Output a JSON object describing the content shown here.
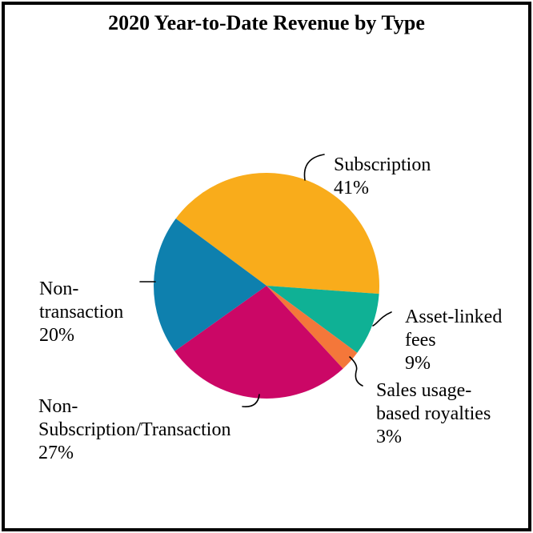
{
  "chart_data": {
    "type": "pie",
    "title": "2020 Year-to-Date Revenue by Type",
    "start_angle_deg": -53.5,
    "legend_position": "none",
    "labels_style": "outside-callouts",
    "slices": [
      {
        "name": "Subscription",
        "value_pct": 41,
        "color": "#F9AC1B",
        "callout_text": "Subscription\n41%"
      },
      {
        "name": "Asset-linked fees",
        "value_pct": 9,
        "color": "#0FB195",
        "callout_text": "Asset-linked\nfees\n9%"
      },
      {
        "name": "Sales usage-based royalties",
        "value_pct": 3,
        "color": "#F4773A",
        "callout_text": "Sales usage-\nbased royalties\n3%"
      },
      {
        "name": "Non-Subscription/Transaction",
        "value_pct": 27,
        "color": "#CB0766",
        "callout_text": "Non-\nSubscription/Transaction\n27%"
      },
      {
        "name": "Non-transaction",
        "value_pct": 20,
        "color": "#0E80AE",
        "callout_text": "Non-\ntransaction\n20%"
      }
    ]
  }
}
